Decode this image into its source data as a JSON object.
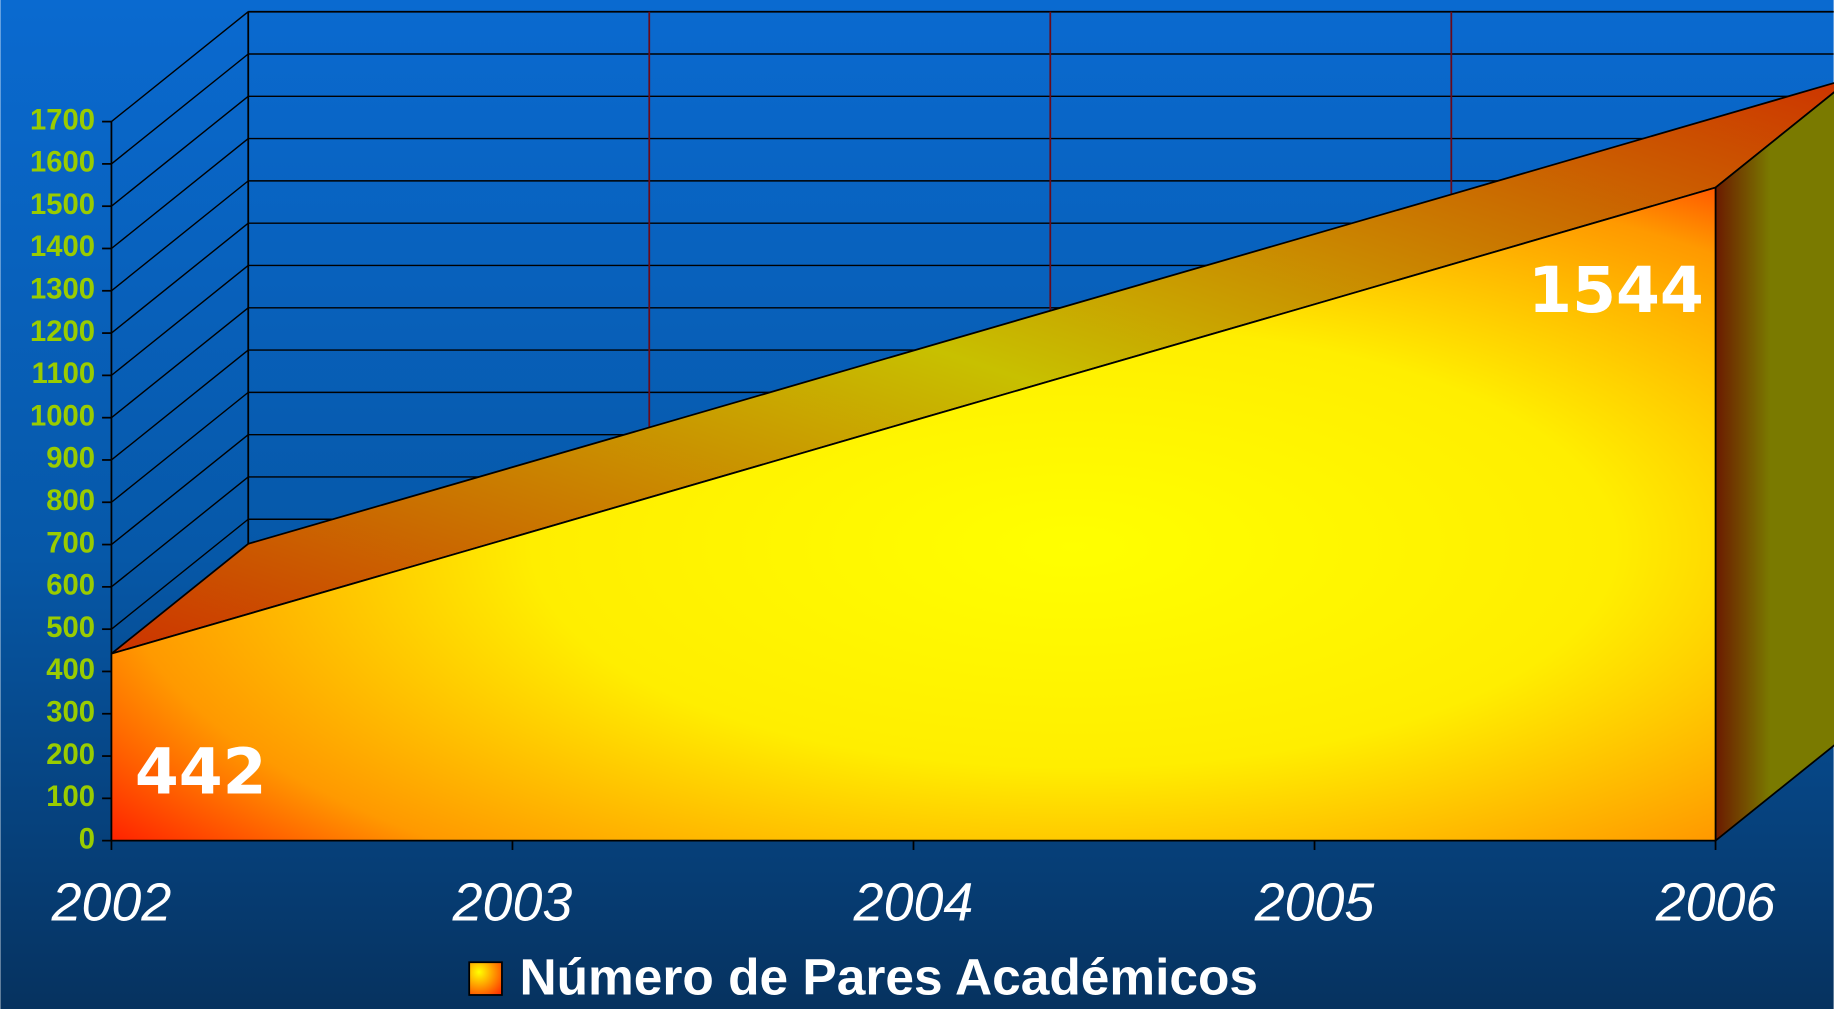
{
  "chart_data": {
    "type": "area",
    "categories": [
      "2002",
      "2003",
      "2004",
      "2005",
      "2006"
    ],
    "series": [
      {
        "name": "Número de Pares Académicos",
        "color": "#ffff00",
        "values": [
          442,
          717,
          993,
          1268,
          1544
        ]
      }
    ],
    "ylim": [
      0,
      1700
    ],
    "yticks": [
      0,
      100,
      200,
      300,
      400,
      500,
      600,
      700,
      800,
      900,
      1000,
      1100,
      1200,
      1300,
      1400,
      1500,
      1600,
      1700
    ],
    "grid": true,
    "legend": "bottom"
  }
}
